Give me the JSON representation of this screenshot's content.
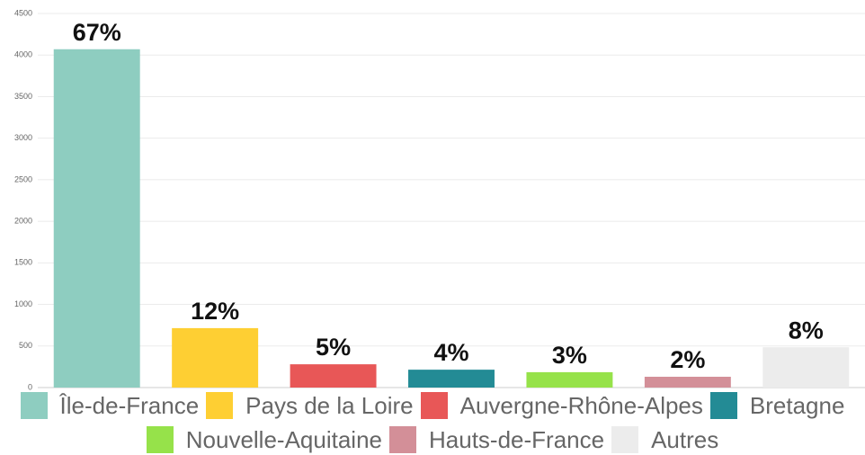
{
  "chart_data": {
    "type": "bar",
    "categories": [
      "Île-de-France",
      "Pays de la Loire",
      "Auvergne-Rhône-Alpes",
      "Bretagne",
      "Nouvelle-Aquitaine",
      "Hauts-de-France",
      "Autres"
    ],
    "values": [
      4070,
      715,
      280,
      215,
      185,
      130,
      485
    ],
    "data_labels": [
      "67%",
      "12%",
      "5%",
      "4%",
      "3%",
      "2%",
      "8%"
    ],
    "colors": [
      "#8ecdc0",
      "#fecf33",
      "#e85757",
      "#238b95",
      "#96e24a",
      "#d38f98",
      "#ececec"
    ],
    "ylim": [
      0,
      4500
    ],
    "yticks": [
      0,
      500,
      1000,
      1500,
      2000,
      2500,
      3000,
      3500,
      4000,
      4500
    ],
    "grid": true,
    "legend": "bottom"
  }
}
